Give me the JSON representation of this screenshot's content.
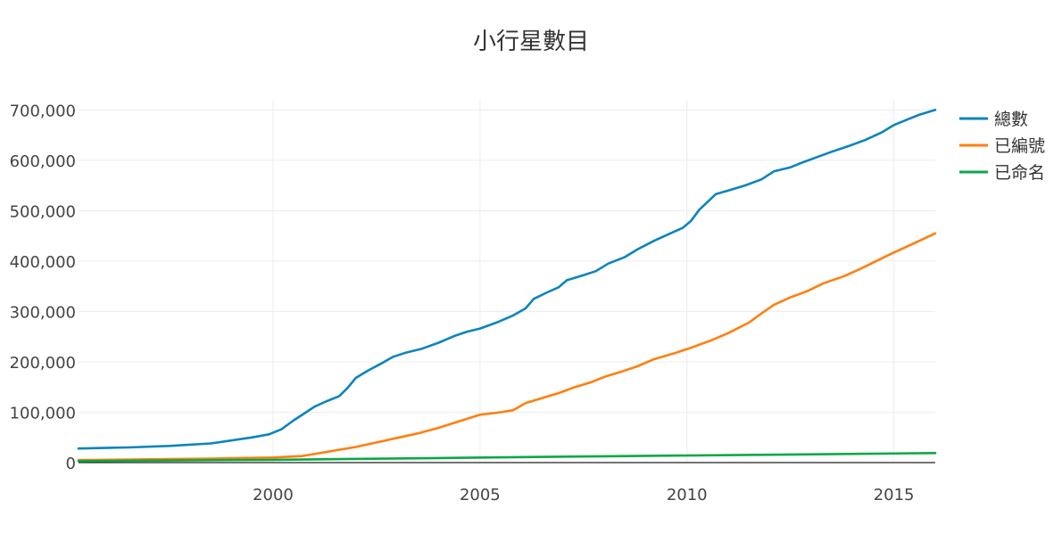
{
  "chart_data": {
    "type": "line",
    "title": "小行星數目",
    "xlabel": "",
    "ylabel": "",
    "xlim": [
      1995.3,
      2016.0
    ],
    "ylim": [
      0,
      720000
    ],
    "x_ticks": [
      2000,
      2005,
      2010,
      2015
    ],
    "x_tick_labels": [
      "2000",
      "2005",
      "2010",
      "2015"
    ],
    "y_ticks": [
      0,
      100000,
      200000,
      300000,
      400000,
      500000,
      600000,
      700000
    ],
    "y_tick_labels": [
      "0",
      "100,000",
      "200,000",
      "300,000",
      "400,000",
      "500,000",
      "600,000",
      "700,000"
    ],
    "grid": true,
    "legend_position": "top-right",
    "series": [
      {
        "name": "總數",
        "color": "#0b84bd",
        "x": [
          1995.3,
          1996.5,
          1997.5,
          1998.5,
          1999.5,
          1999.9,
          2000.2,
          2000.5,
          2000.8,
          2001.0,
          2001.3,
          2001.6,
          2001.8,
          2002.0,
          2002.3,
          2002.6,
          2002.9,
          2003.2,
          2003.6,
          2004.0,
          2004.4,
          2004.7,
          2005.0,
          2005.4,
          2005.8,
          2006.1,
          2006.3,
          2006.6,
          2006.9,
          2007.1,
          2007.5,
          2007.8,
          2008.1,
          2008.5,
          2008.8,
          2009.2,
          2009.6,
          2009.9,
          2010.1,
          2010.3,
          2010.7,
          2011.0,
          2011.4,
          2011.8,
          2012.1,
          2012.5,
          2012.8,
          2013.2,
          2013.5,
          2013.9,
          2014.3,
          2014.7,
          2015.0,
          2015.3,
          2015.6,
          2016.0
        ],
        "values": [
          28000,
          30000,
          33000,
          38000,
          50000,
          56000,
          66000,
          84000,
          100000,
          111000,
          122000,
          132000,
          148000,
          168000,
          183000,
          196000,
          210000,
          218000,
          226000,
          238000,
          252000,
          260000,
          266000,
          278000,
          292000,
          306000,
          325000,
          337000,
          348000,
          362000,
          372000,
          380000,
          395000,
          408000,
          423000,
          440000,
          455000,
          466000,
          480000,
          502000,
          533000,
          540000,
          550000,
          562000,
          578000,
          586000,
          596000,
          608000,
          617000,
          628000,
          640000,
          655000,
          670000,
          680000,
          690000,
          700000
        ]
      },
      {
        "name": "已編號",
        "color": "#ff7f0e",
        "x": [
          1995.3,
          1997.0,
          1998.5,
          2000.0,
          2000.7,
          2001.0,
          2001.5,
          2002.0,
          2002.5,
          2003.0,
          2003.5,
          2004.0,
          2004.5,
          2005.0,
          2005.5,
          2005.8,
          2006.1,
          2006.5,
          2006.9,
          2007.3,
          2007.7,
          2008.0,
          2008.4,
          2008.8,
          2009.2,
          2009.7,
          2010.1,
          2010.6,
          2011.0,
          2011.5,
          2011.8,
          2012.1,
          2012.5,
          2012.9,
          2013.3,
          2013.8,
          2014.2,
          2014.6,
          2015.0,
          2015.4,
          2016.0
        ],
        "values": [
          5000,
          6500,
          8000,
          10000,
          13000,
          17000,
          24000,
          31000,
          40000,
          49000,
          58000,
          69000,
          82000,
          95000,
          100000,
          104000,
          118000,
          128000,
          138000,
          150000,
          160000,
          170000,
          180000,
          191000,
          205000,
          217000,
          228000,
          243000,
          257000,
          278000,
          296000,
          313000,
          328000,
          340000,
          356000,
          370000,
          385000,
          401000,
          417000,
          432000,
          455000
        ]
      },
      {
        "name": "已命名",
        "color": "#0aa845",
        "x": [
          1995.3,
          2000.0,
          2004.0,
          2008.0,
          2012.0,
          2016.0
        ],
        "values": [
          3000,
          5500,
          9000,
          12500,
          15500,
          19000
        ]
      }
    ]
  }
}
